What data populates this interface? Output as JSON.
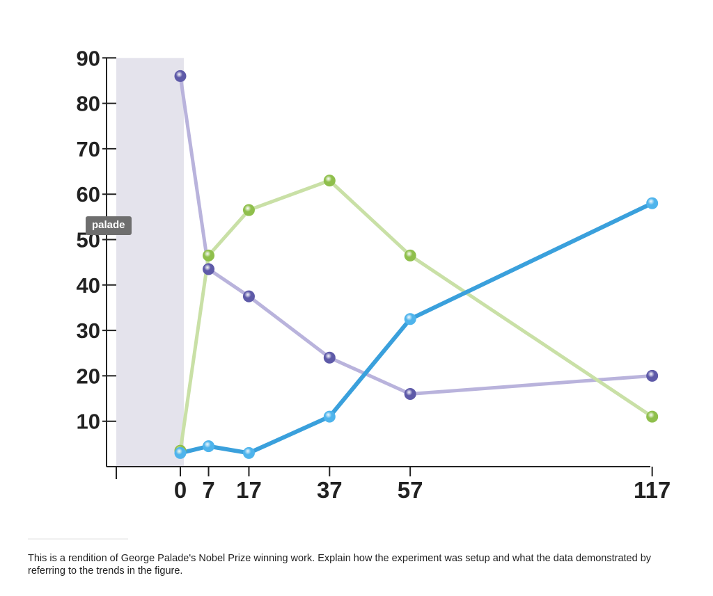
{
  "tooltip": {
    "text": "palade"
  },
  "caption": {
    "text": "This is a rendition of George Palade's Nobel Prize winning work.  Explain how the experiment was setup and what the data demonstrated by referring to the trends in the figure."
  },
  "chart_data": {
    "type": "line",
    "title": "",
    "xlabel": "",
    "ylabel": "",
    "x": [
      0,
      7,
      17,
      37,
      57,
      117
    ],
    "x_tick_labels": [
      "0",
      "7",
      "17",
      "37",
      "57",
      "117"
    ],
    "y_ticks": [
      10,
      20,
      30,
      40,
      50,
      60,
      70,
      80,
      90
    ],
    "ylim": [
      0,
      90
    ],
    "shaded_region": {
      "from": "start",
      "to": 0
    },
    "series": [
      {
        "name": "purple",
        "color": "#b9b3dc",
        "marker_color": "#5e5aa8",
        "values": [
          86,
          43.5,
          37.5,
          24,
          16,
          20
        ]
      },
      {
        "name": "green",
        "color": "#c9e0a6",
        "marker_color": "#8fbf4c",
        "values": [
          3.5,
          46.5,
          56.5,
          63,
          46.5,
          11
        ]
      },
      {
        "name": "blue",
        "color": "#3aa0dc",
        "marker_color": "#4fb4ec",
        "values": [
          3,
          4.5,
          3,
          11,
          32.5,
          58
        ]
      }
    ]
  }
}
